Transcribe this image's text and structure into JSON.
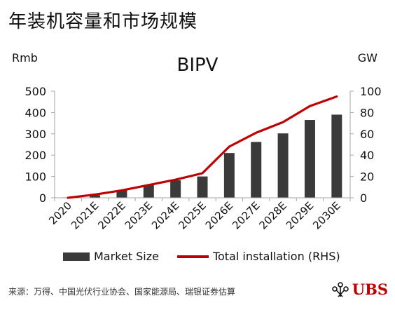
{
  "heading": "年装机容量和市场规模",
  "left_unit": "Rmb",
  "right_unit": "GW",
  "source": "来源：万得、中国光伏行业协会、国家能源局、瑞银证券估算",
  "logo_text": "UBS",
  "colors": {
    "bar": "#3a3a3a",
    "line": "#c00000",
    "axis": "#a6a6a6"
  },
  "chart_data": {
    "type": "bar+line",
    "title": "BIPV",
    "categories": [
      "2020",
      "2021E",
      "2022E",
      "2023E",
      "2024E",
      "2025E",
      "2026E",
      "2027E",
      "2028E",
      "2029E",
      "2030E"
    ],
    "y_left": {
      "ylim": [
        0,
        500
      ],
      "ticks": [
        0,
        100,
        200,
        300,
        400,
        500
      ]
    },
    "y_right": {
      "ylim": [
        0,
        100
      ],
      "ticks": [
        0,
        20,
        40,
        60,
        80,
        100
      ]
    },
    "series": [
      {
        "name": "Market Size",
        "type": "bar",
        "axis": "left",
        "values": [
          2,
          12,
          35,
          60,
          82,
          100,
          210,
          262,
          302,
          365,
          390
        ]
      },
      {
        "name": "Total installation (RHS)",
        "type": "line",
        "axis": "right",
        "values": [
          0,
          3,
          7,
          12,
          17,
          23,
          48,
          61,
          71,
          86,
          95
        ]
      }
    ],
    "legend_position": "bottom",
    "grid": false
  }
}
